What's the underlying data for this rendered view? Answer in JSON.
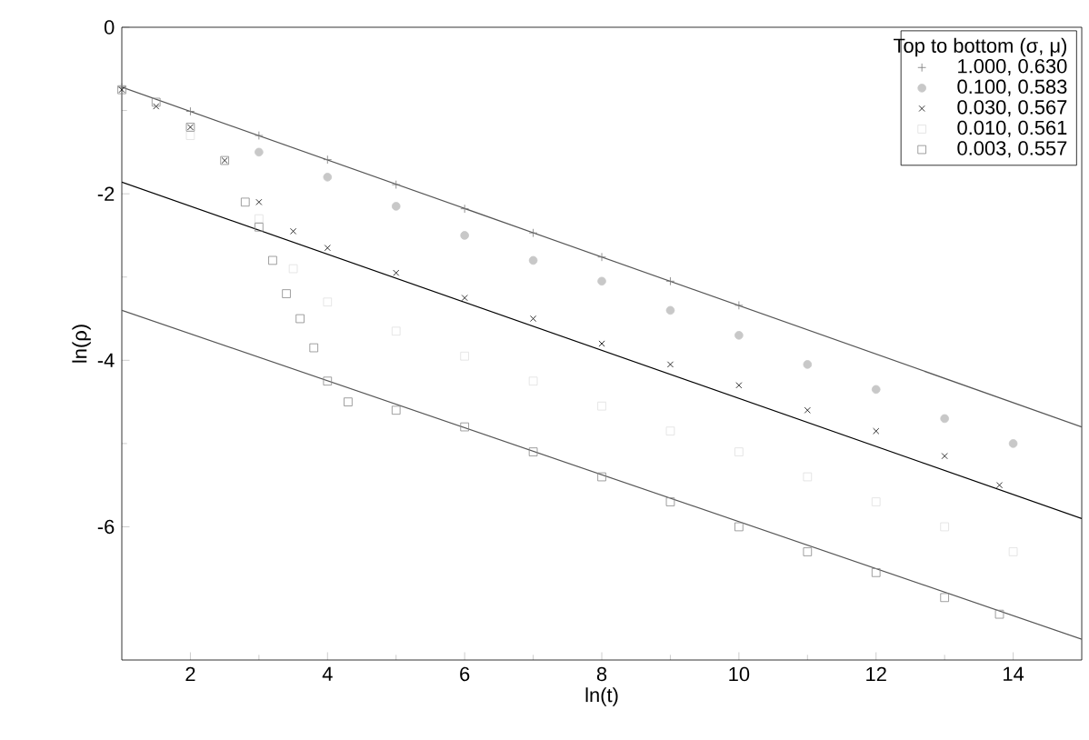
{
  "chart_data": {
    "type": "scatter",
    "xlabel": "ln(t)",
    "ylabel": "ln(ρ)",
    "legend_title": "Top to bottom (σ, μ)",
    "legend": "top right",
    "grid": false,
    "xlim": [
      1,
      15
    ],
    "ylim": [
      -7.6,
      0
    ],
    "xticks": [
      2,
      4,
      6,
      8,
      10,
      12,
      14
    ],
    "yticks": [
      0,
      -2,
      -4,
      -6
    ],
    "series": [
      {
        "name": "1.000, 0.630",
        "color": "#777777",
        "marker": "cross",
        "x": [
          1,
          2,
          3,
          4,
          5,
          6,
          7,
          8,
          9,
          10
        ],
        "values": [
          -0.72,
          -1.01,
          -1.3,
          -1.59,
          -1.89,
          -2.18,
          -2.47,
          -2.76,
          -3.05,
          -3.34
        ]
      },
      {
        "name": "0.100, 0.583",
        "color": "#c8c8c8",
        "marker": "circle",
        "x": [
          3,
          4,
          5,
          6,
          7,
          8,
          9,
          10,
          11,
          12,
          13,
          14
        ],
        "values": [
          -1.5,
          -1.8,
          -2.15,
          -2.5,
          -2.8,
          -3.05,
          -3.4,
          -3.7,
          -4.05,
          -4.35,
          -4.7,
          -5.0
        ]
      },
      {
        "name": "0.030, 0.567",
        "color": "#000000",
        "marker": "x",
        "x": [
          1,
          1.5,
          2,
          2.5,
          3,
          3.5,
          4,
          5,
          6,
          7,
          8,
          9,
          10,
          11,
          12,
          13,
          13.8
        ],
        "values": [
          -0.75,
          -0.95,
          -1.2,
          -1.6,
          -2.1,
          -2.45,
          -2.65,
          -2.95,
          -3.25,
          -3.5,
          -3.8,
          -4.05,
          -4.3,
          -4.6,
          -4.85,
          -5.15,
          -5.5
        ]
      },
      {
        "name": "0.010, 0.561",
        "color": "#e0e0e0",
        "marker": "square",
        "x": [
          2,
          3,
          3.5,
          4,
          5,
          6,
          7,
          8,
          9,
          10,
          11,
          12,
          13,
          14
        ],
        "values": [
          -1.3,
          -2.3,
          -2.9,
          -3.3,
          -3.65,
          -3.95,
          -4.25,
          -4.55,
          -4.85,
          -5.1,
          -5.4,
          -5.7,
          -6.0,
          -6.3
        ]
      },
      {
        "name": "0.003, 0.557",
        "color": "#888888",
        "marker": "square",
        "x": [
          1,
          1.5,
          2,
          2.5,
          2.8,
          3,
          3.2,
          3.4,
          3.6,
          3.8,
          4,
          4.3,
          5,
          6,
          7,
          8,
          9,
          10,
          11,
          12,
          13,
          13.8
        ],
        "values": [
          -0.75,
          -0.9,
          -1.2,
          -1.6,
          -2.1,
          -2.4,
          -2.8,
          -3.2,
          -3.5,
          -3.85,
          -4.25,
          -4.5,
          -4.6,
          -4.8,
          -5.1,
          -5.4,
          -5.7,
          -6.0,
          -6.3,
          -6.55,
          -6.85,
          -7.05
        ]
      },
      {
        "type": "line",
        "color": "#555555",
        "x": [
          1,
          15
        ],
        "values": [
          -0.72,
          -4.8
        ]
      },
      {
        "type": "line",
        "color": "#000000",
        "x": [
          1,
          15
        ],
        "values": [
          -1.86,
          -5.9
        ]
      },
      {
        "type": "line",
        "color": "#555555",
        "x": [
          1,
          15
        ],
        "values": [
          -3.4,
          -7.35
        ]
      }
    ]
  }
}
